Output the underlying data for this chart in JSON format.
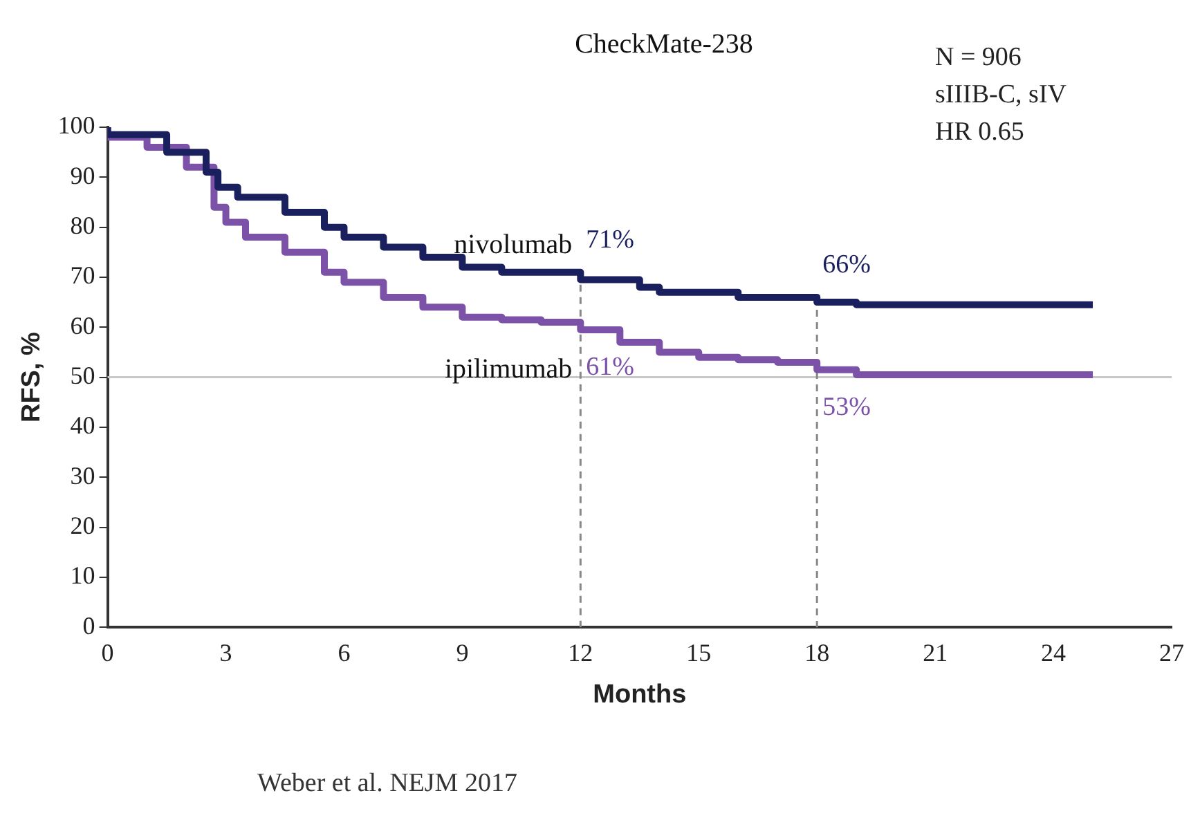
{
  "chart_data": {
    "type": "step",
    "title": "CheckMate-238",
    "xlabel": "Months",
    "ylabel": "RFS, %",
    "xlim": [
      0,
      27
    ],
    "xticks": [
      0,
      3,
      6,
      9,
      12,
      15,
      18,
      21,
      24,
      27
    ],
    "ylim": [
      0,
      100
    ],
    "yticks": [
      0,
      10,
      20,
      30,
      40,
      50,
      60,
      70,
      80,
      90,
      100
    ],
    "grid": false,
    "legend": false,
    "marker": "none",
    "series": [
      {
        "name": "nivolumab",
        "color": "#1a1f5e",
        "x": [
          0,
          1.5,
          2.5,
          2.8,
          3.3,
          4.5,
          5.5,
          6,
          7,
          8,
          9,
          10,
          11,
          12,
          13.5,
          14,
          16,
          18,
          19,
          20,
          25
        ],
        "values": [
          100,
          98.5,
          95,
          91,
          88,
          86,
          83,
          80,
          78,
          76,
          74,
          72,
          71,
          71,
          69.5,
          68,
          67,
          66,
          65,
          64.5,
          64.5
        ],
        "value_labels": [
          null,
          null,
          null,
          null,
          null,
          null,
          null,
          null,
          null,
          null,
          null,
          null,
          null,
          "71%",
          null,
          null,
          null,
          "66%",
          null,
          null,
          null
        ]
      },
      {
        "name": "ipilimumab",
        "color": "#7b52a8",
        "x": [
          0,
          1,
          2,
          2.7,
          3,
          3.5,
          4.5,
          5.5,
          6,
          7,
          8,
          9,
          10,
          11,
          12,
          13,
          14,
          15,
          16,
          17,
          18,
          19,
          20,
          25
        ],
        "values": [
          100,
          98,
          96,
          92,
          84,
          81,
          78,
          75,
          71,
          69,
          66,
          64,
          62,
          61.5,
          61,
          59.5,
          57,
          55,
          54,
          53.5,
          53,
          51.5,
          50.5,
          50.5
        ],
        "value_labels": [
          null,
          null,
          null,
          null,
          null,
          null,
          null,
          null,
          null,
          null,
          null,
          null,
          null,
          null,
          "61%",
          null,
          null,
          null,
          null,
          null,
          "53%",
          null,
          null,
          null
        ]
      }
    ],
    "ref_lines": [
      {
        "axis": "y",
        "value": 50,
        "color": "#c8c8c8",
        "line_style": "solid"
      },
      {
        "axis": "x",
        "value": 12,
        "color": "#888888",
        "line_style": "dashed"
      },
      {
        "axis": "x",
        "value": 18,
        "color": "#888888",
        "line_style": "dashed"
      }
    ],
    "annotations": [
      "N = 906",
      "sIIIB-C, sIV",
      "HR 0.65",
      "Weber et al. NEJM 2017"
    ]
  }
}
